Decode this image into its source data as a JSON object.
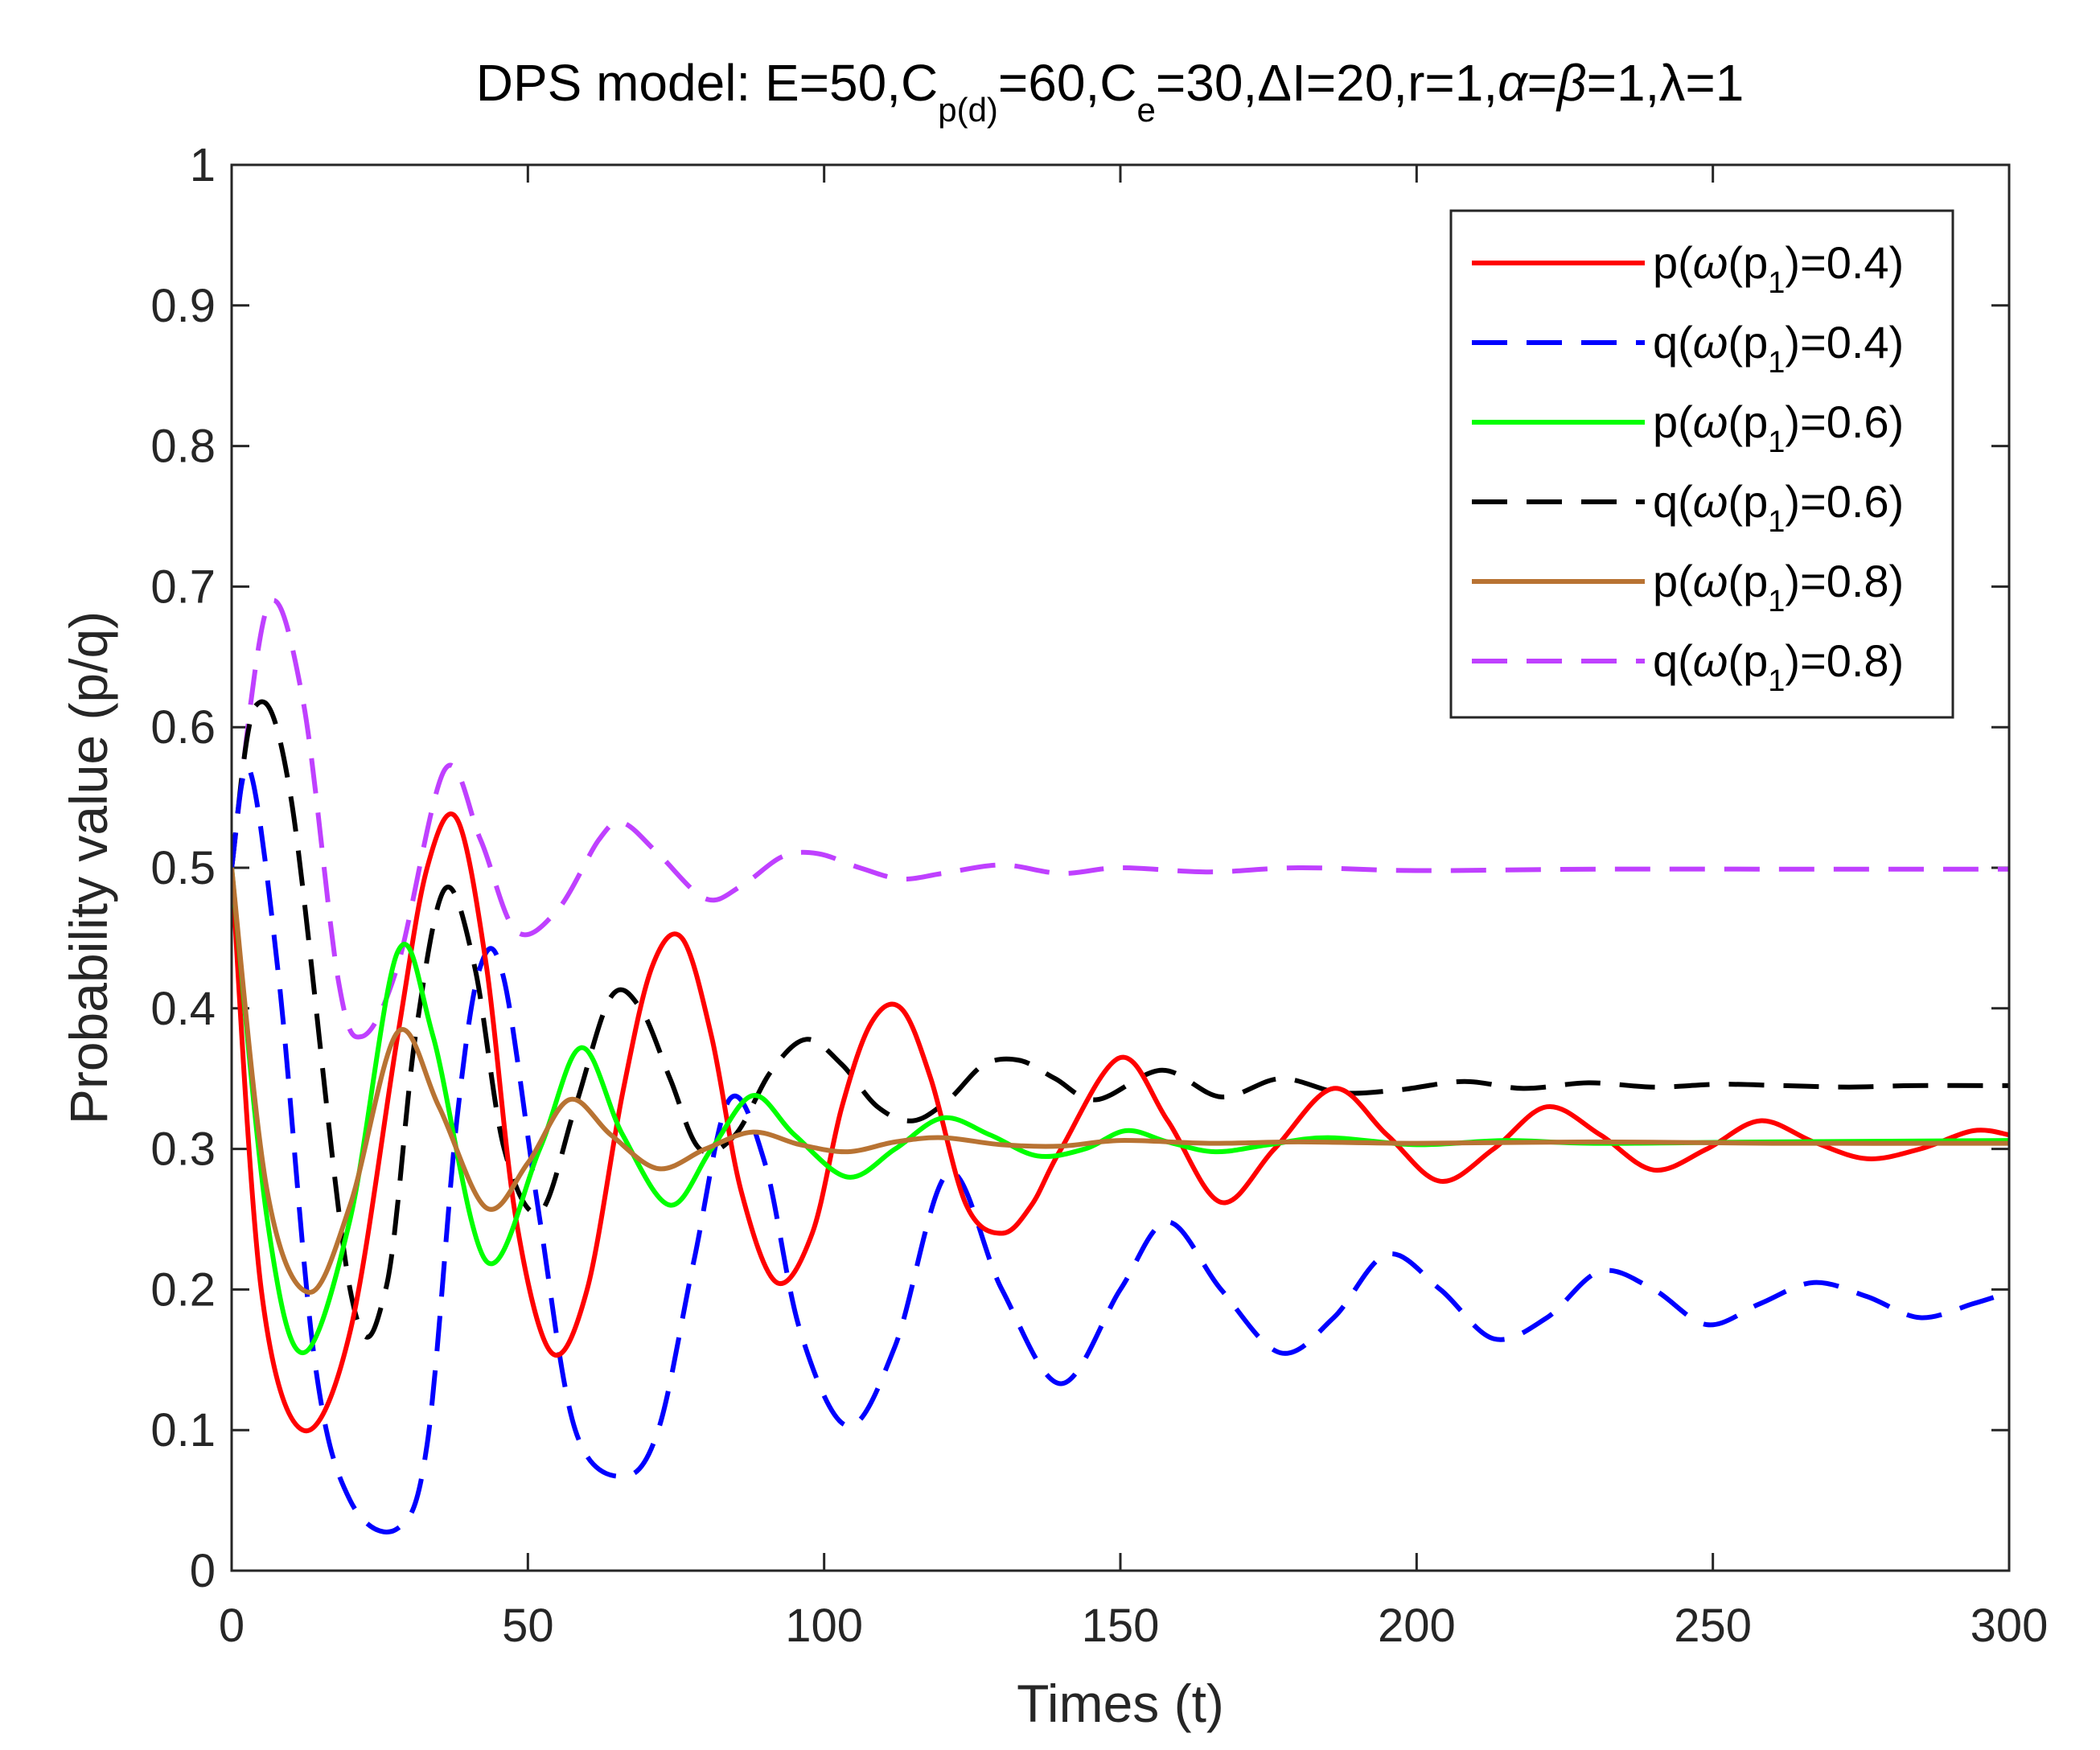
{
  "chart_data": {
    "type": "line",
    "title": {
      "prefix": "DPS model: E=50,C",
      "sub1": "p(d)",
      "mid1": "=60,C",
      "sub2": "e",
      "mid2": "=30,ΔI=20,r=1,",
      "alpha": "α",
      "eq1": "=",
      "beta": "β",
      "mid3": "=1,",
      "lambda": "λ",
      "suffix": "=1"
    },
    "xlabel": "Times (t)",
    "ylabel": "Probability value (p/q)",
    "xlim": [
      0,
      300
    ],
    "ylim": [
      0,
      1
    ],
    "xticks": [
      0,
      50,
      100,
      150,
      200,
      250,
      300
    ],
    "xtick_labels": [
      "0",
      "50",
      "100",
      "150",
      "200",
      "250",
      "300"
    ],
    "yticks": [
      0,
      0.1,
      0.2,
      0.3,
      0.4,
      0.5,
      0.6,
      0.7,
      0.8,
      0.9,
      1
    ],
    "ytick_labels": [
      "0",
      "0.1",
      "0.2",
      "0.3",
      "0.4",
      "0.5",
      "0.6",
      "0.7",
      "0.8",
      "0.9",
      "1"
    ],
    "grid": false,
    "legend_position": "top-right",
    "series": [
      {
        "name": "p(ω(p1)=0.4)",
        "legend": {
          "pre": "p(",
          "omega": "ω",
          "mid": "(p",
          "sub": "1",
          "post": ")=0.4)"
        },
        "color": "#ff0000",
        "style": "solid",
        "x": [
          0,
          5,
          12,
          20,
          28,
          33,
          38,
          43,
          48,
          54,
          60,
          66,
          71,
          76,
          81,
          86,
          92,
          98,
          103,
          108,
          113,
          118,
          124,
          130,
          135,
          140,
          150,
          158,
          167,
          176,
          186,
          195,
          204,
          213,
          222,
          231,
          240,
          249,
          258,
          267,
          276,
          285,
          294,
          300
        ],
        "y": [
          0.5,
          0.2,
          0.1,
          0.17,
          0.38,
          0.5,
          0.535,
          0.43,
          0.25,
          0.155,
          0.2,
          0.34,
          0.43,
          0.45,
          0.38,
          0.27,
          0.205,
          0.24,
          0.33,
          0.39,
          0.4,
          0.35,
          0.26,
          0.24,
          0.26,
          0.3,
          0.365,
          0.32,
          0.262,
          0.3,
          0.343,
          0.31,
          0.277,
          0.3,
          0.33,
          0.31,
          0.285,
          0.3,
          0.32,
          0.305,
          0.293,
          0.3,
          0.313,
          0.31
        ]
      },
      {
        "name": "q(ω(p1)=0.4)",
        "legend": {
          "pre": "q(",
          "omega": "ω",
          "mid": "(p",
          "sub": "1",
          "post": ")=0.4)"
        },
        "color": "#0000ff",
        "style": "dashed",
        "x": [
          0,
          3,
          8,
          14,
          20,
          28,
          33,
          38,
          42,
          46,
          52,
          58,
          66,
          72,
          78,
          84,
          90,
          96,
          104,
          112,
          121,
          130,
          140,
          150,
          158,
          167,
          177,
          186,
          195,
          204,
          213,
          222,
          231,
          240,
          249,
          258,
          267,
          276,
          285,
          294,
          300
        ],
        "y": [
          0.5,
          0.57,
          0.42,
          0.15,
          0.05,
          0.03,
          0.09,
          0.32,
          0.43,
          0.42,
          0.25,
          0.1,
          0.067,
          0.1,
          0.22,
          0.335,
          0.29,
          0.17,
          0.103,
          0.16,
          0.283,
          0.2,
          0.133,
          0.2,
          0.248,
          0.2,
          0.155,
          0.18,
          0.225,
          0.2,
          0.165,
          0.18,
          0.213,
          0.2,
          0.175,
          0.19,
          0.205,
          0.195,
          0.18,
          0.19,
          0.198
        ]
      },
      {
        "name": "p(ω(p1)=0.6)",
        "legend": {
          "pre": "p(",
          "omega": "ω",
          "mid": "(p",
          "sub": "1",
          "post": ")=0.6)"
        },
        "color": "#00ff00",
        "style": "solid",
        "x": [
          0,
          6,
          12,
          20,
          28,
          34,
          43,
          52,
          59,
          66,
          74,
          81,
          88,
          95,
          104,
          112,
          120,
          128,
          136,
          144,
          151,
          158,
          166,
          175,
          185,
          200,
          215,
          230,
          260,
          300
        ],
        "y": [
          0.5,
          0.25,
          0.155,
          0.25,
          0.44,
          0.38,
          0.22,
          0.3,
          0.372,
          0.31,
          0.26,
          0.3,
          0.338,
          0.31,
          0.28,
          0.3,
          0.322,
          0.31,
          0.295,
          0.3,
          0.313,
          0.305,
          0.298,
          0.303,
          0.308,
          0.303,
          0.306,
          0.304,
          0.305,
          0.306
        ]
      },
      {
        "name": "q(ω(p1)=0.6)",
        "legend": {
          "pre": "q(",
          "omega": "ω",
          "mid": "(p",
          "sub": "1",
          "post": ")=0.6)"
        },
        "color": "#000000",
        "style": "dashed",
        "x": [
          0,
          4,
          10,
          20,
          26,
          31,
          36,
          41,
          46,
          52,
          58,
          64,
          69,
          74,
          79,
          85,
          91,
          97,
          103,
          109,
          115,
          121,
          127,
          133,
          139,
          146,
          157,
          167,
          177,
          187,
          197,
          208,
          218,
          229,
          240,
          251,
          262,
          273,
          284,
          300
        ],
        "y": [
          0.5,
          0.615,
          0.55,
          0.2,
          0.2,
          0.38,
          0.485,
          0.43,
          0.3,
          0.255,
          0.33,
          0.408,
          0.4,
          0.35,
          0.3,
          0.31,
          0.355,
          0.378,
          0.36,
          0.33,
          0.32,
          0.335,
          0.36,
          0.363,
          0.35,
          0.335,
          0.356,
          0.337,
          0.35,
          0.34,
          0.342,
          0.348,
          0.343,
          0.347,
          0.344,
          0.346,
          0.345,
          0.344,
          0.345,
          0.345
        ]
      },
      {
        "name": "p(ω(p1)=0.8)",
        "legend": {
          "pre": "p(",
          "omega": "ω",
          "mid": "(p",
          "sub": "1",
          "post": ")=0.8)"
        },
        "color": "#b87333",
        "style": "solid",
        "x": [
          0,
          6,
          13,
          20,
          28,
          35,
          43,
          50,
          57,
          64,
          72,
          80,
          88,
          96,
          104,
          112,
          120,
          130,
          140,
          150,
          165,
          180,
          200,
          230,
          260,
          300
        ],
        "y": [
          0.5,
          0.27,
          0.198,
          0.26,
          0.383,
          0.33,
          0.258,
          0.29,
          0.335,
          0.31,
          0.286,
          0.3,
          0.312,
          0.303,
          0.298,
          0.305,
          0.308,
          0.303,
          0.302,
          0.306,
          0.304,
          0.305,
          0.304,
          0.305,
          0.304,
          0.304
        ]
      },
      {
        "name": "q(ω(p1)=0.8)",
        "legend": {
          "pre": "q(",
          "omega": "ω",
          "mid": "(p",
          "sub": "1",
          "post": ")=0.8)"
        },
        "color": "#bf40ff",
        "style": "dashed",
        "x": [
          0,
          6,
          12,
          18,
          22,
          28,
          36,
          42,
          48,
          55,
          62,
          66,
          72,
          80,
          86,
          93,
          99,
          106,
          113,
          120,
          130,
          140,
          150,
          165,
          180,
          200,
          230,
          260,
          300
        ],
        "y": [
          0.5,
          0.685,
          0.62,
          0.42,
          0.38,
          0.43,
          0.57,
          0.52,
          0.455,
          0.47,
          0.52,
          0.532,
          0.51,
          0.478,
          0.487,
          0.508,
          0.51,
          0.5,
          0.492,
          0.496,
          0.502,
          0.496,
          0.5,
          0.497,
          0.5,
          0.498,
          0.499,
          0.499,
          0.499
        ]
      }
    ]
  }
}
